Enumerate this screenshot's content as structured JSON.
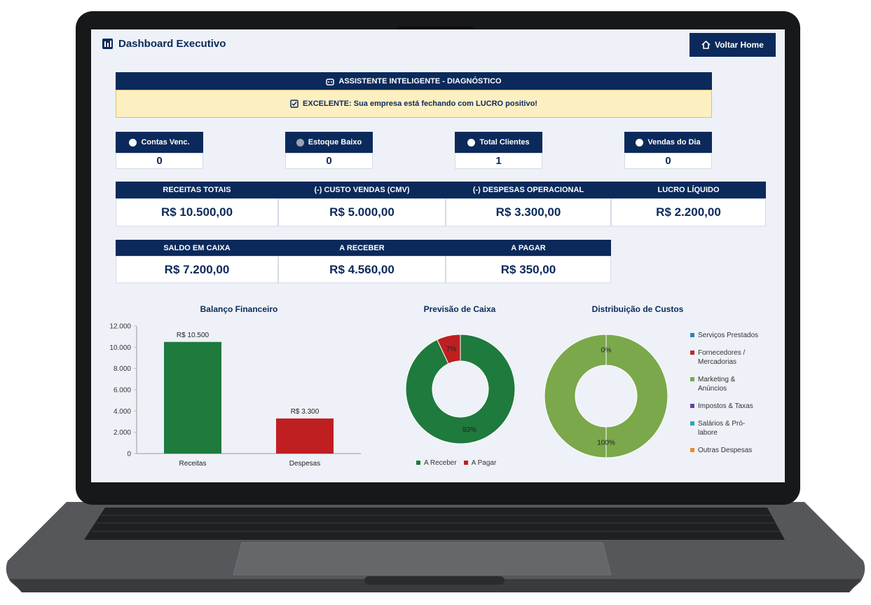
{
  "header": {
    "title": "Dashboard Executivo",
    "button": "Voltar Home"
  },
  "diagnostic": {
    "title": "ASSISTENTE INTELIGENTE - DIAGNÓSTICO",
    "message": "EXCELENTE: Sua empresa está fechando com LUCRO positivo!"
  },
  "status_cards": [
    {
      "label": "Contas Venc.",
      "value": "0"
    },
    {
      "label": "Estoque Baixo",
      "value": "0"
    },
    {
      "label": "Total Clientes",
      "value": "1"
    },
    {
      "label": "Vendas do Dia",
      "value": "0"
    }
  ],
  "financial_cards": [
    {
      "label": "RECEITAS TOTAIS",
      "value": "R$ 10.500,00"
    },
    {
      "label": "(-) CUSTO VENDAS (CMV)",
      "value": "R$ 5.000,00"
    },
    {
      "label": "(-) DESPESAS OPERACIONAL",
      "value": "R$ 3.300,00"
    },
    {
      "label": "LUCRO LÍQUIDO",
      "value": "R$ 2.200,00"
    }
  ],
  "balance_cards": [
    {
      "label": "SALDO EM CAIXA",
      "value": "R$ 7.200,00"
    },
    {
      "label": "A RECEBER",
      "value": "R$ 4.560,00"
    },
    {
      "label": "A PAGAR",
      "value": "R$ 350,00"
    }
  ],
  "chart_data": [
    {
      "type": "bar",
      "title": "Balanço Financeiro",
      "categories": [
        "Receitas",
        "Despesas"
      ],
      "values": [
        10500,
        3300
      ],
      "value_labels": [
        "R$ 10.500",
        "R$ 3.300"
      ],
      "colors": [
        "#1f7a3d",
        "#c01f22"
      ],
      "ylim": [
        0,
        12000
      ],
      "yticks": [
        0,
        {
          "value": 2000,
          "label": "2.000"
        },
        {
          "value": 4000,
          "label": "4.000"
        },
        {
          "value": 6000,
          "label": "6.000"
        },
        {
          "value": 8000,
          "label": "8.000"
        },
        {
          "value": 10000,
          "label": "10.000"
        },
        {
          "value": 12000,
          "label": "12.000"
        }
      ],
      "grid": false
    },
    {
      "type": "donut",
      "title": "Previsão de Caixa",
      "categories": [
        "A Receber",
        "A Pagar"
      ],
      "values": [
        93,
        7
      ],
      "value_labels": [
        "93%",
        "7%"
      ],
      "colors": [
        "#1f7a3d",
        "#c01f22"
      ],
      "legend": "bottom"
    },
    {
      "type": "donut",
      "title": "Distribuição de Custos",
      "categories": [
        "Serviços Prestados",
        "Fornecedores / Mercadorias",
        "Marketing & Anúncios",
        "Impostos & Taxas",
        "Salários & Pró-labore",
        "Outras Despesas"
      ],
      "values": [
        0,
        0,
        100,
        0,
        0,
        0
      ],
      "value_labels": [
        "0%",
        null,
        "100%",
        null,
        null,
        null
      ],
      "colors": [
        "#2f7fc1",
        "#c0282d",
        "#7aa84a",
        "#6b3fa0",
        "#2aa5c0",
        "#e88a2a"
      ],
      "legend": "right"
    }
  ]
}
